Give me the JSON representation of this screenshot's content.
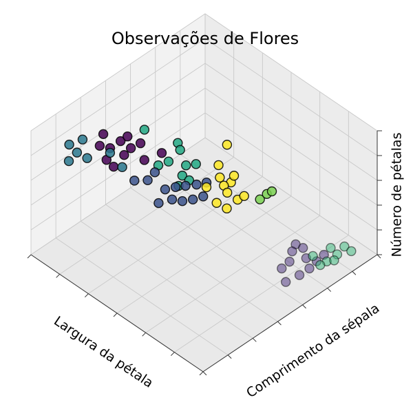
{
  "chart_data": {
    "type": "scatter3d",
    "title": "Observações de Flores",
    "xlabel": "Largura da pétala",
    "ylabel": "Comprimento da sépala",
    "zlabel": "Número de pétalas",
    "xlim": [
      0,
      3
    ],
    "ylim": [
      4.5,
      8
    ],
    "zlim": [
      2,
      7
    ],
    "xticks": [
      0,
      0.5,
      1,
      1.5,
      2,
      2.5,
      3
    ],
    "yticks": [
      4.5,
      5,
      5.5,
      6,
      6.5,
      7,
      7.5,
      8
    ],
    "zticks": [
      2,
      3,
      4,
      5,
      6,
      7
    ],
    "grid": true,
    "series": [
      {
        "color": "#440154",
        "alpha": 0.85,
        "x": [
          0.35,
          0.59,
          0.59,
          0.59,
          0.77,
          0.79,
          0.71,
          0.8,
          1.04,
          0.86,
          1.1,
          0.47
        ],
        "y": [
          6.95,
          6.88,
          6.74,
          7.09,
          6.88,
          6.71,
          7.3,
          7.05,
          6.92,
          7.33,
          6.64,
          7.16
        ],
        "z": [
          6,
          6,
          6,
          6,
          6,
          6,
          6,
          6,
          6,
          6,
          6,
          6
        ]
      },
      {
        "color": "#2a788e",
        "alpha": 0.85,
        "x": [
          0.19,
          0.24,
          0.36,
          0.52,
          0.4,
          0.94,
          0.65
        ],
        "y": [
          7.45,
          7.24,
          7.49,
          7.47,
          7.7,
          7.25,
          7.16
        ],
        "z": [
          6,
          6,
          6,
          6,
          6,
          6,
          6
        ]
      },
      {
        "color": "#22a884",
        "alpha": 0.85,
        "x": [
          0.79,
          0.9,
          0.95,
          1.15,
          1.22,
          0.91,
          1.25,
          1.35,
          1.37,
          0.33
        ],
        "y": [
          5.96,
          6.04,
          6.33,
          6.21,
          6.09,
          6.49,
          6.4,
          6.59,
          6.4,
          6.1
        ],
        "z": [
          5,
          5,
          5,
          5,
          5,
          5,
          5,
          5,
          5,
          5
        ]
      },
      {
        "color": "#3b528b",
        "alpha": 0.85,
        "x": [
          1.08,
          1.15,
          1.26,
          1.33,
          1.38,
          0.96,
          1.02,
          1.09,
          1.17,
          0.69,
          0.65,
          1.23,
          0.58
        ],
        "y": [
          6.68,
          6.49,
          6.41,
          6.28,
          6.13,
          6.41,
          6.27,
          6.15,
          6.02,
          6.45,
          6.26,
          5.89,
          6.59
        ],
        "z": [
          4,
          4,
          4,
          4,
          4,
          4,
          4,
          4,
          4,
          4,
          4,
          4,
          4
        ]
      },
      {
        "color": "#fde725",
        "alpha": 0.85,
        "x": [
          1.11,
          0.92,
          1.28,
          1.44,
          1.42,
          1.38,
          1.54,
          1.72,
          1.73,
          1.58,
          1.74,
          1.29
        ],
        "y": [
          5.51,
          5.12,
          5.68,
          5.64,
          5.76,
          5.51,
          5.83,
          5.83,
          5.71,
          6.09,
          6.07,
          5.96
        ],
        "z": [
          4,
          4,
          4,
          4,
          4,
          4,
          4,
          4,
          4,
          4,
          4,
          4
        ]
      },
      {
        "color": "#7ad151",
        "alpha": 0.85,
        "x": [
          1.91,
          1.9,
          1.91
        ],
        "y": [
          5.6,
          5.45,
          5.36
        ],
        "z": [
          4,
          4,
          4
        ]
      },
      {
        "color": "#472d7b",
        "alpha": 0.5,
        "x": [
          2.16,
          2.35,
          2.33,
          2.59,
          2.43,
          2.56,
          2.27,
          2.56,
          2.59,
          2.54,
          2.22
        ],
        "y": [
          5.17,
          5.67,
          5.49,
          5.59,
          5.27,
          5.21,
          5.15,
          5.83,
          5.39,
          5.04,
          5.31
        ],
        "z": [
          2,
          2,
          2,
          2,
          2,
          2,
          2,
          2,
          2,
          2,
          2
        ]
      },
      {
        "color": "#35b779",
        "alpha": 0.5,
        "x": [
          2.51,
          2.65,
          2.61,
          2.65,
          2.73,
          2.7,
          2.64,
          2.46
        ],
        "y": [
          4.87,
          4.9,
          4.71,
          5.11,
          4.71,
          5.02,
          5.23,
          5.17
        ],
        "z": [
          2,
          2,
          2,
          2,
          2,
          2,
          2,
          2
        ]
      }
    ]
  }
}
